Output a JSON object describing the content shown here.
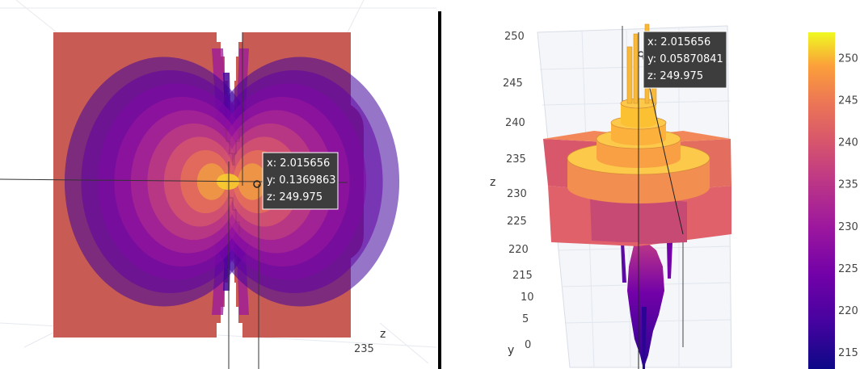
{
  "chart_data": [
    {
      "type": "surface",
      "view": "top",
      "axes": {
        "z": {
          "label": "z",
          "tick_labels": [
            "235"
          ]
        }
      },
      "hover": {
        "x": "x: 2.015656",
        "y": "y: 0.1369863",
        "z": "z: 249.975"
      },
      "contour_levels": [
        218,
        222,
        226,
        230,
        234,
        238,
        242,
        246,
        250
      ]
    },
    {
      "type": "surface",
      "view": "perspective",
      "axes": {
        "z": {
          "label": "z",
          "range": [
            0,
            252
          ],
          "tick_labels": [
            "250",
            "245",
            "240",
            "235",
            "230",
            "225",
            "220",
            "215",
            "10",
            "5",
            "0"
          ]
        },
        "y": {
          "label": "y"
        }
      },
      "hover": {
        "x": "x: 2.015656",
        "y": "y: 0.05870841",
        "z": "z: 249.975"
      },
      "colorbar": {
        "range": [
          213,
          253
        ],
        "tick_labels": [
          "250",
          "245",
          "240",
          "235",
          "230",
          "225",
          "220",
          "215"
        ],
        "colorscale": "plasma"
      }
    }
  ]
}
